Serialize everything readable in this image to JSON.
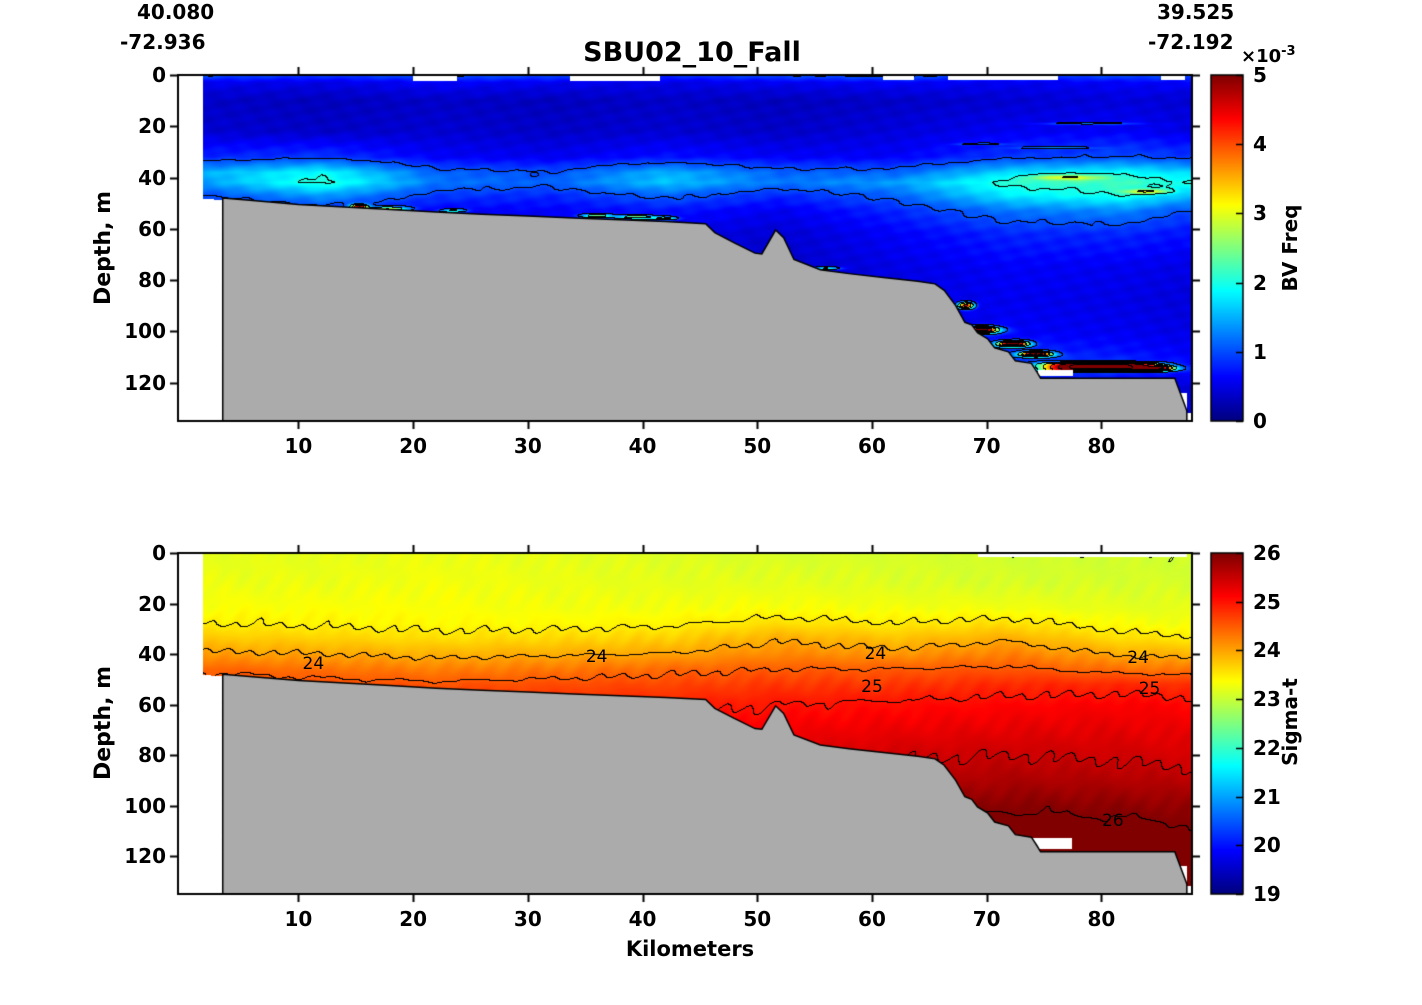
{
  "header": {
    "lat_left": "40.080",
    "lon_left": "-72.936",
    "lat_right": "39.525",
    "lon_right": "-72.192",
    "title": "SBU02_10_Fall"
  },
  "axes": {
    "xlabel": "Kilometers",
    "ylabel": "Depth, m",
    "x_ticks": [
      10,
      20,
      30,
      40,
      50,
      60,
      70,
      80
    ],
    "y_ticks": [
      0,
      20,
      40,
      60,
      80,
      100,
      120
    ],
    "x_range_km": [
      -0.5,
      87.9
    ],
    "depth_range_m": [
      0,
      135
    ]
  },
  "bathymetry": {
    "fill_color": "#ABABAB",
    "line_color": "#000000",
    "profile_km_m": [
      [
        1.68,
        47.5
      ],
      [
        3.4,
        48
      ],
      [
        6,
        49
      ],
      [
        10,
        50.5
      ],
      [
        14,
        51.5
      ],
      [
        18,
        52.5
      ],
      [
        22,
        53.5
      ],
      [
        26,
        54.3
      ],
      [
        30,
        55
      ],
      [
        34,
        55.8
      ],
      [
        38,
        56.5
      ],
      [
        42,
        57.2
      ],
      [
        45.5,
        58
      ],
      [
        46.3,
        61.5
      ],
      [
        48,
        65.5
      ],
      [
        49.8,
        69.5
      ],
      [
        50.4,
        69.8
      ],
      [
        51.6,
        60.5
      ],
      [
        52.3,
        63.5
      ],
      [
        53.2,
        72
      ],
      [
        55.5,
        76
      ],
      [
        58,
        77.5
      ],
      [
        61,
        79
      ],
      [
        64,
        80.5
      ],
      [
        65.5,
        81.5
      ],
      [
        66.3,
        84
      ],
      [
        67.3,
        90
      ],
      [
        68.1,
        96.5
      ],
      [
        68.7,
        97.5
      ],
      [
        69.2,
        100.5
      ],
      [
        70.1,
        103
      ],
      [
        70.7,
        106.5
      ],
      [
        71.9,
        108
      ],
      [
        72.5,
        111.5
      ],
      [
        73.9,
        112.5
      ],
      [
        74.4,
        116
      ],
      [
        74.7,
        118.3
      ],
      [
        86.4,
        118.3
      ],
      [
        87.45,
        131
      ]
    ]
  },
  "chart_data": [
    {
      "type": "heatmap",
      "name": "bv-freq-section",
      "colormap": "jet",
      "units": "s^-1 x10^-3",
      "colorbar": {
        "label": "BV Freq",
        "scale_base": "×10",
        "scale_exp": "-3",
        "ticks": [
          5,
          4,
          3,
          2,
          1,
          0
        ],
        "range": [
          0,
          5
        ]
      },
      "data_start_km": 1.68,
      "x_km": [
        2,
        12,
        22,
        32,
        42,
        52,
        62,
        72,
        82,
        87
      ],
      "depths_m": [
        0,
        3,
        10,
        22,
        32,
        38,
        42,
        47,
        53,
        62,
        75,
        88,
        100,
        108,
        114,
        122,
        135
      ],
      "values": [
        [
          1.05,
          0.9,
          1.1,
          1.0,
          0.85,
          1.05,
          1.15,
          0.9,
          1.05,
          1.0
        ],
        [
          0.55,
          0.5,
          0.6,
          0.55,
          0.5,
          0.55,
          0.6,
          0.55,
          0.6,
          0.6
        ],
        [
          0.35,
          0.3,
          0.35,
          0.3,
          0.35,
          0.3,
          0.35,
          0.4,
          0.45,
          0.4
        ],
        [
          0.4,
          0.35,
          0.4,
          0.35,
          0.4,
          0.35,
          0.45,
          0.55,
          0.6,
          0.5
        ],
        [
          0.8,
          0.9,
          0.6,
          0.55,
          0.7,
          0.6,
          0.6,
          0.9,
          1.0,
          0.9
        ],
        [
          1.5,
          1.9,
          1.1,
          1.0,
          1.5,
          1.1,
          1.1,
          1.7,
          1.9,
          1.7
        ],
        [
          1.4,
          2.1,
          1.2,
          1.1,
          1.6,
          1.2,
          1.4,
          2.1,
          2.2,
          2.0
        ],
        [
          1.0,
          1.4,
          0.9,
          0.8,
          1.1,
          0.8,
          1.1,
          1.8,
          2.0,
          1.6
        ],
        [
          0.6,
          0.8,
          0.6,
          0.6,
          0.7,
          0.55,
          0.8,
          1.2,
          1.3,
          1.0
        ],
        [
          0.45,
          0.45,
          0.45,
          0.45,
          0.5,
          0.4,
          0.6,
          0.8,
          0.8,
          0.7
        ],
        [
          0.35,
          0.35,
          0.35,
          0.35,
          0.4,
          0.35,
          0.5,
          0.6,
          0.55,
          0.5
        ],
        [
          0.35,
          0.35,
          0.35,
          0.35,
          0.35,
          0.35,
          0.45,
          0.55,
          0.5,
          0.45
        ],
        [
          0.35,
          0.35,
          0.35,
          0.35,
          0.35,
          0.35,
          0.4,
          0.6,
          0.55,
          0.5
        ],
        [
          0.35,
          0.35,
          0.35,
          0.35,
          0.35,
          0.35,
          0.4,
          0.8,
          0.7,
          0.6
        ],
        [
          0.35,
          0.35,
          0.35,
          0.35,
          0.35,
          0.35,
          0.4,
          1.0,
          0.9,
          0.7
        ],
        [
          0.35,
          0.35,
          0.35,
          0.35,
          0.35,
          0.35,
          0.35,
          0.5,
          0.5,
          0.45
        ],
        [
          0.35,
          0.35,
          0.35,
          0.35,
          0.35,
          0.35,
          0.35,
          0.4,
          0.4,
          0.4
        ]
      ],
      "hotspots": [
        {
          "km": 15.3,
          "m": 51.5,
          "rx": 0.7,
          "rm": 1.0,
          "a": 4.2
        },
        {
          "km": 17.8,
          "m": 52.3,
          "rx": 1.6,
          "rm": 0.8,
          "a": 2.4
        },
        {
          "km": 23.5,
          "m": 53.0,
          "rx": 1.0,
          "rm": 0.6,
          "a": 1.6
        },
        {
          "km": 36.0,
          "m": 55.0,
          "rx": 1.3,
          "rm": 0.7,
          "a": 2.0
        },
        {
          "km": 39.5,
          "m": 55.5,
          "rx": 1.6,
          "rm": 0.7,
          "a": 2.2
        },
        {
          "km": 42.0,
          "m": 56.0,
          "rx": 1.0,
          "rm": 0.6,
          "a": 1.7
        },
        {
          "km": 56.0,
          "m": 75.5,
          "rx": 1.2,
          "rm": 0.6,
          "a": 1.6
        },
        {
          "km": 63.0,
          "m": 84.0,
          "rx": 1.5,
          "rm": 0.7,
          "a": 2.3
        },
        {
          "km": 68.2,
          "m": 90.0,
          "rx": 0.7,
          "rm": 1.3,
          "a": 3.8
        },
        {
          "km": 69.6,
          "m": 99.5,
          "rx": 1.4,
          "rm": 1.3,
          "a": 5.2
        },
        {
          "km": 72.3,
          "m": 105.0,
          "rx": 1.3,
          "rm": 1.1,
          "a": 5.2
        },
        {
          "km": 74.3,
          "m": 109.0,
          "rx": 1.3,
          "rm": 1.0,
          "a": 5.2
        },
        {
          "km": 80.0,
          "m": 114.0,
          "rx": 5.0,
          "rm": 1.7,
          "a": 5.5,
          "p": 4
        },
        {
          "km": 85.3,
          "m": 114.5,
          "rx": 1.3,
          "rm": 1.0,
          "a": 3.0
        },
        {
          "km": 77.0,
          "m": 40.0,
          "rx": 3.0,
          "rm": 1.1,
          "a": 1.1
        },
        {
          "km": 84.0,
          "m": 45.5,
          "rx": 1.9,
          "rm": 0.9,
          "a": 1.2
        },
        {
          "km": 79.0,
          "m": 19.0,
          "rx": 4.0,
          "rm": 0.5,
          "a": 0.7
        },
        {
          "km": 76.0,
          "m": 28.5,
          "rx": 3.0,
          "rm": 0.4,
          "a": 0.65
        },
        {
          "km": 69.5,
          "m": 27.0,
          "rx": 2.0,
          "rm": 0.4,
          "a": 0.6
        }
      ],
      "contour_base": 0,
      "contour_interval": 1,
      "contour_labels": [],
      "data_gaps": [
        {
          "km": [
            20.0,
            23.8
          ],
          "m": [
            0,
            2.2
          ]
        },
        {
          "km": [
            33.7,
            41.5
          ],
          "m": [
            0,
            2.2
          ]
        },
        {
          "km": [
            61.0,
            63.7
          ],
          "m": [
            0,
            2.0
          ]
        },
        {
          "km": [
            66.6,
            76.2
          ],
          "m": [
            0,
            2.0
          ]
        },
        {
          "km": [
            85.2,
            87.3
          ],
          "m": [
            0,
            1.8
          ]
        },
        {
          "km": [
            74.5,
            77.5
          ],
          "m": [
            115,
            117.3
          ]
        },
        {
          "km": [
            86.45,
            87.45
          ],
          "m": [
            124,
            131
          ]
        }
      ]
    },
    {
      "type": "heatmap",
      "name": "sigma-t-section",
      "colormap": "jet",
      "units": "kg/m^3",
      "colorbar": {
        "label": "Sigma-t",
        "ticks": [
          26,
          25,
          24,
          23,
          22,
          21,
          20,
          19
        ],
        "range": [
          19,
          26
        ]
      },
      "data_start_km": 1.68,
      "x_km": [
        2,
        12,
        22,
        32,
        42,
        52,
        62,
        72,
        82,
        87
      ],
      "depths_m": [
        0,
        12,
        22,
        28,
        34,
        40,
        46,
        52,
        60,
        70,
        80,
        90,
        100,
        110,
        120,
        135
      ],
      "values": [
        [
          23.2,
          23.2,
          23.25,
          23.2,
          23.15,
          23.1,
          23.1,
          23.05,
          23.05,
          23.05
        ],
        [
          23.25,
          23.25,
          23.3,
          23.25,
          23.2,
          23.2,
          23.15,
          23.1,
          23.1,
          23.1
        ],
        [
          23.35,
          23.35,
          23.35,
          23.3,
          23.3,
          23.35,
          23.3,
          23.3,
          23.2,
          23.2
        ],
        [
          23.5,
          23.45,
          23.4,
          23.4,
          23.45,
          23.6,
          23.5,
          23.6,
          23.35,
          23.3
        ],
        [
          23.75,
          23.7,
          23.6,
          23.65,
          23.7,
          23.95,
          23.8,
          23.95,
          23.6,
          23.55
        ],
        [
          24.05,
          24.0,
          23.9,
          23.95,
          24.0,
          24.2,
          24.1,
          24.25,
          23.95,
          23.9
        ],
        [
          24.45,
          24.35,
          24.25,
          24.3,
          24.4,
          24.5,
          24.5,
          24.55,
          24.35,
          24.3
        ],
        [
          24.65,
          24.6,
          24.55,
          24.6,
          24.65,
          24.75,
          24.75,
          24.85,
          24.85,
          24.8
        ],
        [
          24.85,
          24.85,
          24.85,
          24.85,
          24.9,
          25.0,
          25.05,
          25.1,
          25.15,
          25.1
        ],
        [
          25.0,
          25.0,
          25.0,
          25.05,
          25.1,
          25.2,
          25.25,
          25.3,
          25.3,
          25.25
        ],
        [
          25.2,
          25.2,
          25.2,
          25.2,
          25.3,
          25.35,
          25.45,
          25.5,
          25.45,
          25.4
        ],
        [
          25.4,
          25.4,
          25.4,
          25.4,
          25.45,
          25.55,
          25.65,
          25.7,
          25.65,
          25.6
        ],
        [
          25.55,
          25.55,
          25.55,
          25.6,
          25.65,
          25.75,
          25.85,
          25.95,
          25.9,
          25.85
        ],
        [
          25.75,
          25.75,
          25.75,
          25.8,
          25.85,
          25.95,
          26.05,
          26.15,
          26.1,
          26.05
        ],
        [
          25.9,
          25.9,
          25.9,
          25.95,
          26.0,
          26.1,
          26.2,
          26.3,
          26.25,
          26.2
        ],
        [
          26.0,
          26.0,
          26.0,
          26.05,
          26.1,
          26.2,
          26.3,
          26.4,
          26.35,
          26.3
        ]
      ],
      "hotspots": [],
      "contour_base": 19,
      "contour_interval": 0.5,
      "contour_labels": [
        {
          "text": "24",
          "km": 11.3,
          "m": 44
        },
        {
          "text": "24",
          "km": 36.0,
          "m": 41
        },
        {
          "text": "24",
          "km": 60.3,
          "m": 40
        },
        {
          "text": "24",
          "km": 83.2,
          "m": 41.5
        },
        {
          "text": "25",
          "km": 60.0,
          "m": 53
        },
        {
          "text": "25",
          "km": 84.2,
          "m": 54
        },
        {
          "text": "26",
          "km": 81.0,
          "m": 106
        }
      ],
      "data_gaps": [
        {
          "km": [
            69.2,
            87.45
          ],
          "m": [
            0,
            1.6
          ]
        },
        {
          "km": [
            74.0,
            77.4
          ],
          "m": [
            113,
            117
          ]
        },
        {
          "km": [
            86.5,
            87.45
          ],
          "m": [
            124,
            134
          ]
        }
      ]
    }
  ]
}
